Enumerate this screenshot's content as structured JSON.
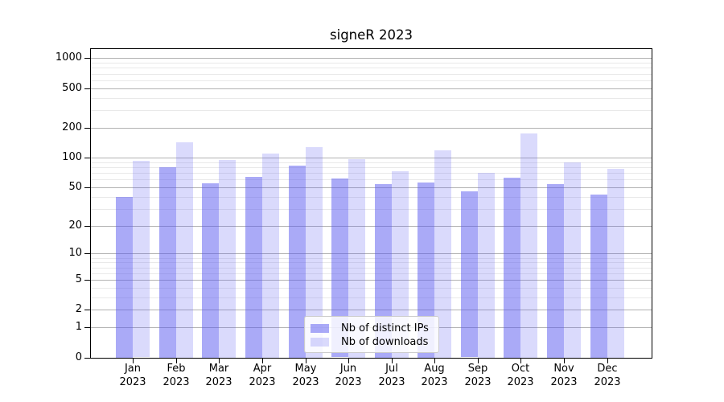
{
  "chart_data": {
    "type": "bar",
    "title": "signeR 2023",
    "categories": [
      "Jan",
      "Feb",
      "Mar",
      "Apr",
      "May",
      "Jun",
      "Jul",
      "Aug",
      "Sep",
      "Oct",
      "Nov",
      "Dec"
    ],
    "x_year_label": "2023",
    "series": [
      {
        "name": "Nb of distinct IPs",
        "color": "rgba(85,85,240,0.50)",
        "values": [
          40,
          80,
          55,
          64,
          83,
          61,
          54,
          56,
          45,
          63,
          54,
          42
        ]
      },
      {
        "name": "Nb of downloads",
        "color": "rgba(85,85,240,0.22)",
        "values": [
          92,
          143,
          95,
          110,
          127,
          97,
          73,
          119,
          70,
          175,
          90,
          77
        ]
      }
    ],
    "y_scale": "log1p",
    "ylim": [
      0,
      1234
    ],
    "y_major_ticks": [
      0,
      1,
      2,
      5,
      10,
      20,
      50,
      100,
      200,
      500,
      1000
    ],
    "y_minor_ticks": [
      3,
      4,
      6,
      7,
      8,
      9,
      30,
      40,
      60,
      70,
      80,
      90,
      300,
      400,
      600,
      700,
      800,
      900
    ],
    "grid": {
      "on": true,
      "major_color": "#b2b2b2",
      "minor_color": "#e9e9e9"
    },
    "legend": {
      "position": "lower-center"
    },
    "colors": {
      "axis": "#000000",
      "bar_base": "#5555f0"
    }
  }
}
